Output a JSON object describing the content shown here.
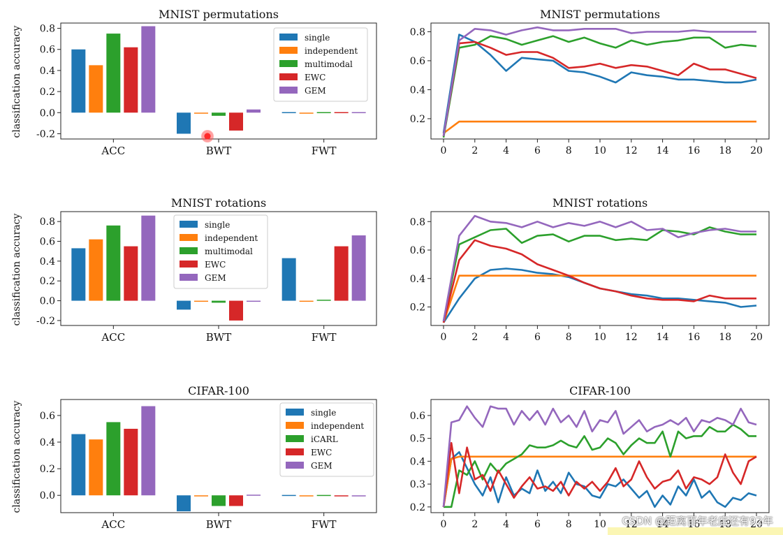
{
  "colors": {
    "single": "#1f77b4",
    "independent": "#ff7f0e",
    "multimodal": "#2ca02c",
    "EWC": "#d62728",
    "GEM": "#9467bd"
  },
  "watermark": "CSDN @距离百年老店还有92年",
  "chart_data": [
    {
      "type": "bar",
      "title": "MNIST permutations",
      "ylabel": "classification accuracy",
      "categories": [
        "ACC",
        "BWT",
        "FWT"
      ],
      "ylim": [
        -0.25,
        0.85
      ],
      "yticks": [
        "-0.2",
        "0.0",
        "0.2",
        "0.4",
        "0.6",
        "0.8"
      ],
      "legend_position": "upper right",
      "series": [
        {
          "name": "single",
          "values": [
            0.6,
            -0.2,
            0.005
          ]
        },
        {
          "name": "independent",
          "values": [
            0.45,
            0.0,
            0.0
          ]
        },
        {
          "name": "multimodal",
          "values": [
            0.75,
            -0.03,
            0.005
          ]
        },
        {
          "name": "EWC",
          "values": [
            0.62,
            -0.17,
            0.005
          ]
        },
        {
          "name": "GEM",
          "values": [
            0.82,
            0.03,
            0.005
          ]
        }
      ]
    },
    {
      "type": "line",
      "title": "MNIST permutations",
      "x": [
        0,
        1,
        2,
        3,
        4,
        5,
        6,
        7,
        8,
        9,
        10,
        11,
        12,
        13,
        14,
        15,
        16,
        17,
        18,
        19,
        20
      ],
      "xticks": [
        "0",
        "2",
        "4",
        "6",
        "8",
        "10",
        "12",
        "14",
        "16",
        "18",
        "20"
      ],
      "ylim": [
        0.06,
        0.86
      ],
      "yticks": [
        "0.2",
        "0.4",
        "0.6",
        "0.8"
      ],
      "series": [
        {
          "name": "single",
          "values": [
            0.1,
            0.78,
            0.73,
            0.64,
            0.53,
            0.62,
            0.61,
            0.6,
            0.53,
            0.52,
            0.49,
            0.45,
            0.52,
            0.5,
            0.49,
            0.47,
            0.47,
            0.46,
            0.45,
            0.45,
            0.47
          ]
        },
        {
          "name": "independent",
          "values": [
            0.1,
            0.18,
            0.18,
            0.18,
            0.18,
            0.18,
            0.18,
            0.18,
            0.18,
            0.18,
            0.18,
            0.18,
            0.18,
            0.18,
            0.18,
            0.18,
            0.18,
            0.18,
            0.18,
            0.18,
            0.18
          ]
        },
        {
          "name": "multimodal",
          "values": [
            0.07,
            0.69,
            0.71,
            0.77,
            0.75,
            0.71,
            0.74,
            0.77,
            0.73,
            0.76,
            0.72,
            0.69,
            0.74,
            0.71,
            0.73,
            0.74,
            0.76,
            0.76,
            0.69,
            0.71,
            0.7
          ]
        },
        {
          "name": "EWC",
          "values": [
            0.08,
            0.72,
            0.73,
            0.69,
            0.64,
            0.66,
            0.66,
            0.62,
            0.55,
            0.56,
            0.58,
            0.55,
            0.57,
            0.56,
            0.53,
            0.5,
            0.58,
            0.54,
            0.54,
            0.51,
            0.48
          ]
        },
        {
          "name": "GEM",
          "values": [
            0.08,
            0.74,
            0.82,
            0.81,
            0.78,
            0.81,
            0.83,
            0.81,
            0.81,
            0.82,
            0.82,
            0.82,
            0.79,
            0.8,
            0.8,
            0.8,
            0.81,
            0.8,
            0.8,
            0.8,
            0.8
          ]
        }
      ]
    },
    {
      "type": "bar",
      "title": "MNIST rotations",
      "ylabel": "classification accuracy",
      "categories": [
        "ACC",
        "BWT",
        "FWT"
      ],
      "ylim": [
        -0.25,
        0.9
      ],
      "yticks": [
        "-0.2",
        "0.0",
        "0.2",
        "0.4",
        "0.6",
        "0.8"
      ],
      "legend_position": "upper center",
      "series": [
        {
          "name": "single",
          "values": [
            0.53,
            -0.09,
            0.43
          ]
        },
        {
          "name": "independent",
          "values": [
            0.62,
            0.0,
            0.0
          ]
        },
        {
          "name": "multimodal",
          "values": [
            0.76,
            -0.02,
            0.01
          ]
        },
        {
          "name": "EWC",
          "values": [
            0.55,
            -0.2,
            0.55
          ]
        },
        {
          "name": "GEM",
          "values": [
            0.86,
            0.0,
            0.66
          ]
        }
      ]
    },
    {
      "type": "line",
      "title": "MNIST rotations",
      "x": [
        0,
        1,
        2,
        3,
        4,
        5,
        6,
        7,
        8,
        9,
        10,
        11,
        12,
        13,
        14,
        15,
        16,
        17,
        18,
        19,
        20
      ],
      "xticks": [
        "0",
        "2",
        "4",
        "6",
        "8",
        "10",
        "12",
        "14",
        "16",
        "18",
        "20"
      ],
      "ylim": [
        0.07,
        0.87
      ],
      "yticks": [
        "0.2",
        "0.4",
        "0.6",
        "0.8"
      ],
      "series": [
        {
          "name": "single",
          "values": [
            0.09,
            0.26,
            0.4,
            0.46,
            0.47,
            0.46,
            0.44,
            0.43,
            0.41,
            0.37,
            0.33,
            0.31,
            0.29,
            0.28,
            0.26,
            0.26,
            0.25,
            0.24,
            0.23,
            0.2,
            0.21
          ]
        },
        {
          "name": "independent",
          "values": [
            0.09,
            0.42,
            0.42,
            0.42,
            0.42,
            0.42,
            0.42,
            0.42,
            0.42,
            0.42,
            0.42,
            0.42,
            0.42,
            0.42,
            0.42,
            0.42,
            0.42,
            0.42,
            0.42,
            0.42,
            0.42
          ]
        },
        {
          "name": "multimodal",
          "values": [
            0.1,
            0.64,
            0.69,
            0.74,
            0.75,
            0.65,
            0.7,
            0.71,
            0.66,
            0.7,
            0.7,
            0.67,
            0.68,
            0.67,
            0.74,
            0.73,
            0.71,
            0.76,
            0.73,
            0.71,
            0.71
          ]
        },
        {
          "name": "EWC",
          "values": [
            0.09,
            0.53,
            0.67,
            0.63,
            0.61,
            0.57,
            0.5,
            0.46,
            0.42,
            0.37,
            0.33,
            0.31,
            0.28,
            0.26,
            0.25,
            0.25,
            0.24,
            0.28,
            0.26,
            0.26,
            0.26
          ]
        },
        {
          "name": "GEM",
          "values": [
            0.1,
            0.7,
            0.84,
            0.8,
            0.79,
            0.76,
            0.8,
            0.76,
            0.79,
            0.77,
            0.8,
            0.76,
            0.8,
            0.74,
            0.75,
            0.69,
            0.72,
            0.74,
            0.75,
            0.73,
            0.73
          ]
        }
      ]
    },
    {
      "type": "bar",
      "title": "CIFAR-100",
      "ylabel": "classification accuracy",
      "categories": [
        "ACC",
        "BWT",
        "FWT"
      ],
      "ylim": [
        -0.13,
        0.72
      ],
      "yticks": [
        "0.0",
        "0.2",
        "0.4",
        "0.6"
      ],
      "legend_position": "upper right",
      "series": [
        {
          "name": "single",
          "values": [
            0.46,
            -0.12,
            0.003
          ]
        },
        {
          "name": "independent",
          "values": [
            0.42,
            0.0,
            0.0
          ]
        },
        {
          "name": "iCARL",
          "values": [
            0.55,
            -0.08,
            0.003
          ]
        },
        {
          "name": "EWC",
          "values": [
            0.5,
            -0.08,
            -0.005
          ]
        },
        {
          "name": "GEM",
          "values": [
            0.67,
            0.005,
            -0.003
          ]
        }
      ]
    },
    {
      "type": "line",
      "title": "CIFAR-100",
      "x": [
        0,
        0.5,
        1,
        1.5,
        2,
        2.5,
        3,
        3.5,
        4,
        4.5,
        5,
        5.5,
        6,
        6.5,
        7,
        7.5,
        8,
        8.5,
        9,
        9.5,
        10,
        10.5,
        11,
        11.5,
        12,
        12.5,
        13,
        13.5,
        14,
        14.5,
        15,
        15.5,
        16,
        16.5,
        17,
        17.5,
        18,
        18.5,
        19,
        19.5,
        20
      ],
      "xticks": [
        "0",
        "2",
        "4",
        "6",
        "8",
        "10",
        "12",
        "14",
        "16",
        "18",
        "20"
      ],
      "ylim": [
        0.175,
        0.67
      ],
      "yticks": [
        "0.2",
        "0.3",
        "0.4",
        "0.5",
        "0.6"
      ],
      "series": [
        {
          "name": "single",
          "values": [
            0.2,
            0.41,
            0.44,
            0.37,
            0.3,
            0.25,
            0.33,
            0.22,
            0.33,
            0.25,
            0.28,
            0.26,
            0.36,
            0.27,
            0.31,
            0.26,
            0.35,
            0.3,
            0.29,
            0.25,
            0.24,
            0.3,
            0.29,
            0.32,
            0.28,
            0.24,
            0.27,
            0.2,
            0.25,
            0.21,
            0.29,
            0.25,
            0.32,
            0.24,
            0.27,
            0.22,
            0.2,
            0.24,
            0.23,
            0.26,
            0.25
          ]
        },
        {
          "name": "independent",
          "values": [
            0.2,
            0.41,
            0.42,
            0.42,
            0.42,
            0.42,
            0.42,
            0.42,
            0.42,
            0.42,
            0.42,
            0.42,
            0.42,
            0.42,
            0.42,
            0.42,
            0.42,
            0.42,
            0.42,
            0.42,
            0.42,
            0.42,
            0.42,
            0.42,
            0.42,
            0.42,
            0.42,
            0.42,
            0.42,
            0.42,
            0.42,
            0.42,
            0.42,
            0.42,
            0.42,
            0.42,
            0.42,
            0.42,
            0.42,
            0.42,
            0.42
          ]
        },
        {
          "name": "iCARL",
          "values": [
            0.2,
            0.2,
            0.36,
            0.34,
            0.4,
            0.32,
            0.39,
            0.35,
            0.39,
            0.41,
            0.43,
            0.47,
            0.46,
            0.46,
            0.47,
            0.49,
            0.47,
            0.46,
            0.51,
            0.45,
            0.46,
            0.5,
            0.48,
            0.43,
            0.47,
            0.5,
            0.48,
            0.48,
            0.53,
            0.42,
            0.53,
            0.5,
            0.51,
            0.51,
            0.55,
            0.53,
            0.53,
            0.56,
            0.54,
            0.51,
            0.51
          ]
        },
        {
          "name": "EWC",
          "values": [
            0.2,
            0.48,
            0.26,
            0.46,
            0.32,
            0.34,
            0.27,
            0.36,
            0.3,
            0.24,
            0.29,
            0.33,
            0.28,
            0.29,
            0.27,
            0.31,
            0.25,
            0.31,
            0.28,
            0.31,
            0.27,
            0.31,
            0.37,
            0.29,
            0.32,
            0.4,
            0.33,
            0.28,
            0.31,
            0.32,
            0.36,
            0.28,
            0.33,
            0.32,
            0.3,
            0.33,
            0.43,
            0.35,
            0.3,
            0.4,
            0.42
          ]
        },
        {
          "name": "GEM",
          "values": [
            0.2,
            0.57,
            0.58,
            0.64,
            0.59,
            0.55,
            0.64,
            0.63,
            0.63,
            0.56,
            0.62,
            0.58,
            0.62,
            0.56,
            0.63,
            0.57,
            0.6,
            0.55,
            0.62,
            0.53,
            0.58,
            0.57,
            0.62,
            0.52,
            0.55,
            0.58,
            0.53,
            0.55,
            0.56,
            0.58,
            0.56,
            0.59,
            0.53,
            0.58,
            0.57,
            0.59,
            0.58,
            0.56,
            0.63,
            0.57,
            0.56
          ]
        }
      ]
    }
  ]
}
